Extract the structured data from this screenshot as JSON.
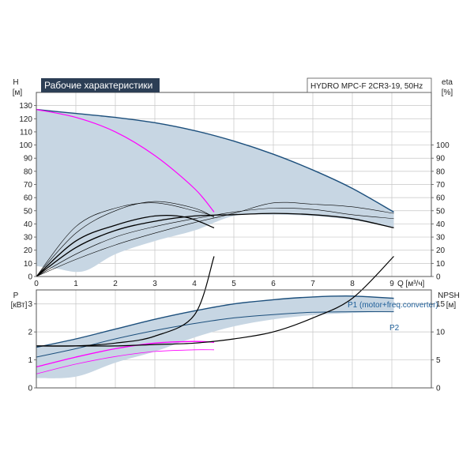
{
  "chart_data": [
    {
      "type": "line",
      "title": "Рабочие характеристики",
      "model": "HYDRO MPC-F 2CR3-19, 50Hz",
      "xlabel": "Q [м³/ч]",
      "xlim": [
        0,
        10
      ],
      "x_ticks": [
        "0",
        "1",
        "2",
        "3",
        "4",
        "5",
        "6",
        "7",
        "8",
        "9"
      ],
      "x_unit": "Q [м³/ч]",
      "ylabel_left": "H",
      "ylabel_left_unit": "[м]",
      "ylim_left": [
        0,
        140
      ],
      "y_ticks_left": [
        "0",
        "10",
        "20",
        "30",
        "40",
        "50",
        "60",
        "70",
        "80",
        "90",
        "100",
        "110",
        "120",
        "130"
      ],
      "ylabel_right": "eta",
      "ylabel_right_unit": "[%]",
      "ylim_right": [
        0,
        140
      ],
      "y_ticks_right": [
        "0",
        "10",
        "20",
        "30",
        "40",
        "50",
        "60",
        "70",
        "80",
        "90",
        "100"
      ],
      "grid": true,
      "band": {
        "upper": [
          [
            0,
            127
          ],
          [
            1,
            124
          ],
          [
            2,
            121
          ],
          [
            3,
            117
          ],
          [
            4,
            111
          ],
          [
            5,
            103
          ],
          [
            6,
            93
          ],
          [
            7,
            81
          ],
          [
            8,
            67
          ],
          [
            9.05,
            49
          ]
        ],
        "lower": [
          [
            9.05,
            37
          ],
          [
            8,
            43
          ],
          [
            7,
            46
          ],
          [
            6,
            47
          ],
          [
            5,
            46
          ],
          [
            4,
            35
          ],
          [
            3,
            27
          ],
          [
            2,
            17
          ],
          [
            1.2,
            4
          ],
          [
            0.5,
            6
          ],
          [
            0,
            8
          ]
        ]
      },
      "series": [
        {
          "key": "H_max",
          "color": "#1c4f7c",
          "width": 1.4,
          "points": [
            [
              0,
              127
            ],
            [
              1,
              124
            ],
            [
              2,
              121
            ],
            [
              3,
              117
            ],
            [
              4,
              111
            ],
            [
              5,
              103
            ],
            [
              6,
              93
            ],
            [
              7,
              81
            ],
            [
              8,
              67
            ],
            [
              9.05,
              49
            ]
          ]
        },
        {
          "key": "H_single",
          "color": "#ff00ff",
          "width": 1.2,
          "points": [
            [
              0,
              127
            ],
            [
              1,
              121
            ],
            [
              2,
              110
            ],
            [
              3,
              92
            ],
            [
              4,
              67
            ],
            [
              4.5,
              49
            ]
          ]
        },
        {
          "key": "eta_max",
          "color": "#000000",
          "width": 1.3,
          "points": [
            [
              0,
              0
            ],
            [
              1,
              22
            ],
            [
              2,
              35
            ],
            [
              3,
              42
            ],
            [
              4,
              46
            ],
            [
              5,
              47
            ],
            [
              6,
              48
            ],
            [
              7,
              47
            ],
            [
              8,
              44
            ],
            [
              9.05,
              37
            ]
          ]
        },
        {
          "key": "eta_thin_1",
          "color": "#000000",
          "width": 0.6,
          "points": [
            [
              0,
              0
            ],
            [
              1,
              17
            ],
            [
              2,
              30
            ],
            [
              3,
              38
            ],
            [
              4,
              44
            ],
            [
              5,
              49
            ],
            [
              6,
              52
            ],
            [
              7,
              51
            ],
            [
              8,
              47
            ],
            [
              9.05,
              44
            ]
          ]
        },
        {
          "key": "eta_thin_2",
          "color": "#000000",
          "width": 0.6,
          "points": [
            [
              0,
              0
            ],
            [
              1,
              13
            ],
            [
              2,
              24
            ],
            [
              3,
              33
            ],
            [
              4,
              41
            ],
            [
              5,
              48
            ],
            [
              6,
              56
            ],
            [
              7,
              55
            ],
            [
              8,
              53
            ],
            [
              9.05,
              48
            ]
          ]
        },
        {
          "key": "eta_single",
          "color": "#000000",
          "width": 1.3,
          "points": [
            [
              0,
              0
            ],
            [
              1,
              27
            ],
            [
              2,
              39
            ],
            [
              3,
              46
            ],
            [
              3.8,
              45
            ],
            [
              4.5,
              37
            ]
          ]
        },
        {
          "key": "eta_single_thin_1",
          "color": "#000000",
          "width": 0.6,
          "points": [
            [
              0,
              0
            ],
            [
              1,
              33
            ],
            [
              2,
              50
            ],
            [
              3,
              57
            ],
            [
              4,
              52
            ],
            [
              4.5,
              45
            ]
          ]
        },
        {
          "key": "eta_single_thin_2",
          "color": "#000000",
          "width": 0.6,
          "points": [
            [
              0,
              0
            ],
            [
              1,
              38
            ],
            [
              2,
              52
            ],
            [
              3,
              56
            ],
            [
              4,
              50
            ],
            [
              4.5,
              46
            ]
          ]
        }
      ]
    },
    {
      "type": "line",
      "xlim": [
        0,
        10
      ],
      "ylabel_left": "P",
      "ylabel_left_unit": "[кВт]",
      "ylim_left": [
        0,
        3.5
      ],
      "y_ticks_left": [
        "0",
        "1",
        "2",
        "3"
      ],
      "ylabel_right": "NPSH",
      "ylabel_right_unit": "[м]",
      "ylim_right": [
        0,
        17.5
      ],
      "y_ticks_right": [
        "0",
        "5",
        "10",
        "15"
      ],
      "grid": true,
      "band": {
        "upper": [
          [
            0,
            1.45
          ],
          [
            1,
            1.75
          ],
          [
            2,
            2.1
          ],
          [
            3,
            2.45
          ],
          [
            4,
            2.75
          ],
          [
            5,
            3.0
          ],
          [
            6,
            3.15
          ],
          [
            7,
            3.25
          ],
          [
            8,
            3.28
          ],
          [
            9.05,
            3.2
          ]
        ],
        "lower": [
          [
            9.05,
            2.72
          ],
          [
            8,
            2.68
          ],
          [
            7,
            2.6
          ],
          [
            6,
            2.45
          ],
          [
            5,
            2.2
          ],
          [
            4,
            1.8
          ],
          [
            3,
            1.3
          ],
          [
            2,
            0.9
          ],
          [
            1,
            0.4
          ],
          [
            0,
            0.35
          ]
        ]
      },
      "series": [
        {
          "key": "P1_max",
          "name": "P1 (motor+freq.converter)",
          "color": "#1c4f7c",
          "width": 1.4,
          "points": [
            [
              0,
              1.45
            ],
            [
              1,
              1.75
            ],
            [
              2,
              2.1
            ],
            [
              3,
              2.45
            ],
            [
              4,
              2.75
            ],
            [
              5,
              3.0
            ],
            [
              6,
              3.15
            ],
            [
              7,
              3.25
            ],
            [
              8,
              3.28
            ],
            [
              9.05,
              3.2
            ]
          ]
        },
        {
          "key": "P2_max",
          "name": "P2",
          "color": "#1c4f7c",
          "width": 1.0,
          "points": [
            [
              0,
              1.1
            ],
            [
              1,
              1.4
            ],
            [
              2,
              1.75
            ],
            [
              3,
              2.05
            ],
            [
              4,
              2.3
            ],
            [
              5,
              2.5
            ],
            [
              6,
              2.62
            ],
            [
              7,
              2.7
            ],
            [
              8,
              2.72
            ],
            [
              9.05,
              2.72
            ]
          ]
        },
        {
          "key": "P1_single",
          "color": "#ff00ff",
          "width": 1.3,
          "points": [
            [
              0,
              0.75
            ],
            [
              1,
              1.1
            ],
            [
              2,
              1.4
            ],
            [
              3,
              1.6
            ],
            [
              4,
              1.66
            ],
            [
              4.5,
              1.63
            ]
          ]
        },
        {
          "key": "P2_single",
          "color": "#ff00ff",
          "width": 0.8,
          "points": [
            [
              0,
              0.5
            ],
            [
              1,
              0.85
            ],
            [
              2,
              1.12
            ],
            [
              3,
              1.3
            ],
            [
              4,
              1.36
            ],
            [
              4.5,
              1.36
            ]
          ]
        },
        {
          "key": "NPSH_max",
          "color": "#000000",
          "width": 1.2,
          "points": [
            [
              0,
              1.5
            ],
            [
              1,
              1.5
            ],
            [
              2,
              1.5
            ],
            [
              3,
              1.55
            ],
            [
              4,
              1.6
            ],
            [
              5,
              1.75
            ],
            [
              6,
              2.0
            ],
            [
              7,
              2.5
            ],
            [
              8,
              3.2
            ],
            [
              9.05,
              4.7
            ]
          ]
        },
        {
          "key": "NPSH_single",
          "color": "#000000",
          "width": 1.2,
          "points": [
            [
              0,
              1.5
            ],
            [
              1,
              1.5
            ],
            [
              2,
              1.6
            ],
            [
              3,
              1.85
            ],
            [
              4,
              2.6
            ],
            [
              4.5,
              4.7
            ]
          ]
        }
      ]
    }
  ]
}
